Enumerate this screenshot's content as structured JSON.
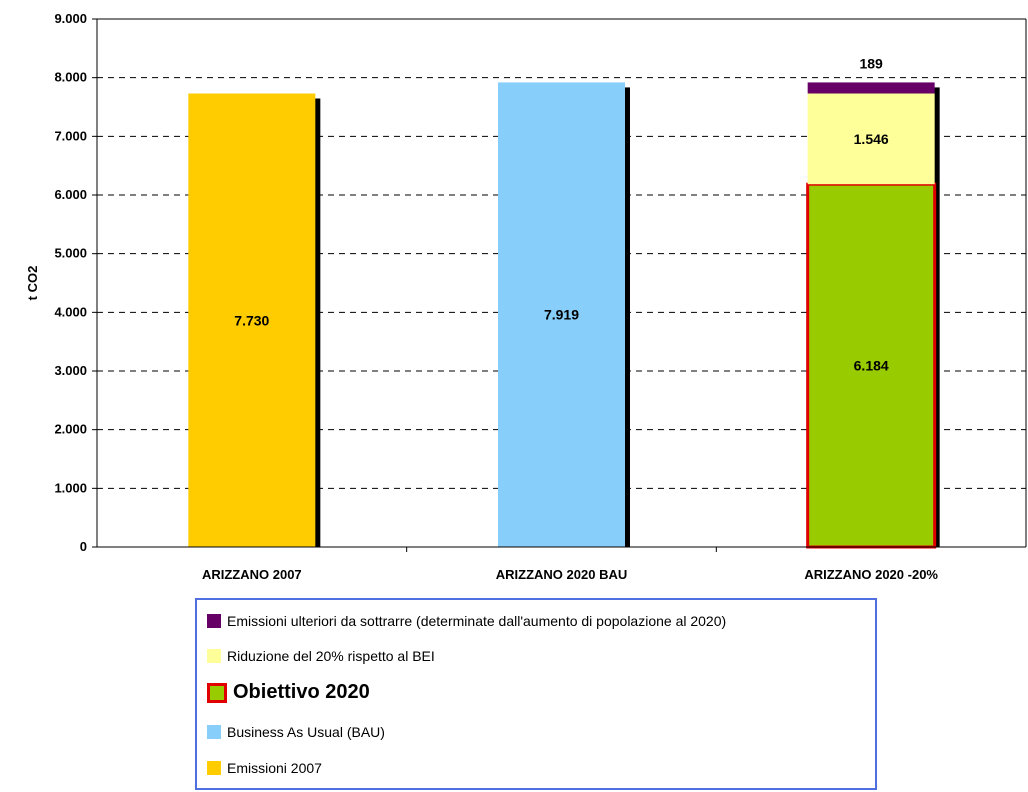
{
  "chart_data": {
    "type": "bar",
    "stacked": true,
    "ylabel": "t CO2",
    "ylim": [
      0,
      9000
    ],
    "yticks": [
      "0",
      "1.000",
      "2.000",
      "3.000",
      "4.000",
      "5.000",
      "6.000",
      "7.000",
      "8.000",
      "9.000"
    ],
    "grid": true,
    "categories": [
      "ARIZZANO 2007",
      "ARIZZANO 2020 BAU",
      "ARIZZANO 2020 -20%"
    ],
    "series": [
      {
        "name": "Emissioni 2007",
        "color": "#ffcc00",
        "values": [
          7730,
          0,
          0
        ],
        "labels": [
          "7.730",
          "",
          ""
        ]
      },
      {
        "name": "Business As Usual (BAU)",
        "color": "#87cefa",
        "values": [
          0,
          7919,
          0
        ],
        "labels": [
          "",
          "7.919",
          ""
        ]
      },
      {
        "name": "Obiettivo 2020",
        "color": "#99cc00",
        "border": "#e00000",
        "values": [
          0,
          0,
          6184
        ],
        "labels": [
          "",
          "",
          "6.184"
        ]
      },
      {
        "name": "Riduzione del 20% rispetto al BEI",
        "color": "#ffff99",
        "values": [
          0,
          0,
          1546
        ],
        "labels": [
          "",
          "",
          "1.546"
        ]
      },
      {
        "name": "Emissioni ulteriori da sottrarre (determinate dall'aumento di popolazione al 2020)",
        "color": "#660066",
        "values": [
          0,
          0,
          189
        ],
        "labels": [
          "",
          "",
          "189"
        ]
      }
    ],
    "legend": {
      "placement": "bottom",
      "items": [
        {
          "label": "Emissioni ulteriori da sottrarre (determinate dall'aumento di popolazione al 2020)",
          "color": "#660066"
        },
        {
          "label": "Riduzione del 20% rispetto al BEI",
          "color": "#ffff99"
        },
        {
          "label": "Obiettivo 2020",
          "color": "#99cc00",
          "border": "#e00000",
          "emphasis": true
        },
        {
          "label": "Business As Usual (BAU)",
          "color": "#87cefa"
        },
        {
          "label": "Emissioni 2007",
          "color": "#ffcc00"
        }
      ]
    }
  }
}
